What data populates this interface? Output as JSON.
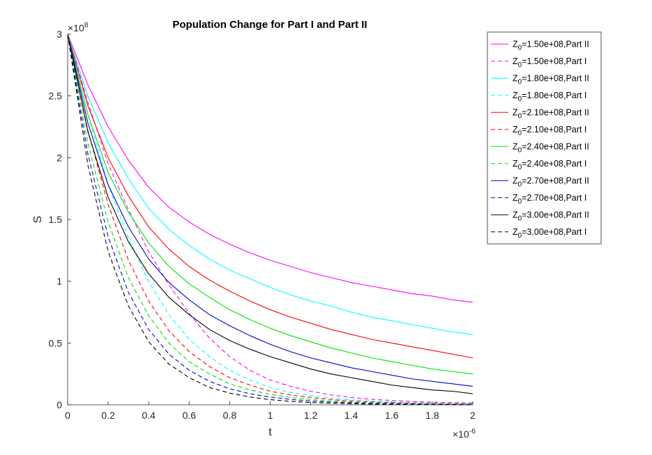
{
  "chart_data": {
    "type": "line",
    "title": "Population Change for Part I and Part II",
    "xlabel": "t",
    "ylabel": "S",
    "x_exponent_label": "×10",
    "x_exponent": "-6",
    "y_exponent_label": "×10",
    "y_exponent": "8",
    "xlim": [
      0,
      2
    ],
    "ylim": [
      0,
      3
    ],
    "x_ticks": [
      0,
      0.2,
      0.4,
      0.6,
      0.8,
      1,
      1.2,
      1.4,
      1.6,
      1.8,
      2
    ],
    "x_tick_labels": [
      "0",
      "0.2",
      "0.4",
      "0.6",
      "0.8",
      "1",
      "1.2",
      "1.4",
      "1.6",
      "1.8",
      "2"
    ],
    "y_ticks": [
      0,
      0.5,
      1,
      1.5,
      2,
      2.5,
      3
    ],
    "y_tick_labels": [
      "0",
      "0.5",
      "1",
      "1.5",
      "2",
      "2.5",
      "3"
    ],
    "grid": false,
    "legend_position": "outside-right",
    "x": [
      0,
      0.1,
      0.2,
      0.3,
      0.4,
      0.5,
      0.6,
      0.7,
      0.8,
      0.9,
      1.0,
      1.1,
      1.2,
      1.3,
      1.4,
      1.5,
      1.6,
      1.7,
      1.8,
      1.9,
      2.0
    ],
    "series": [
      {
        "name": "Z",
        "sub": "0",
        "suffix": "=1.50e+08,Part II",
        "color": "#ff00ff",
        "style": "solid",
        "values": [
          3.0,
          2.59,
          2.25,
          1.98,
          1.76,
          1.6,
          1.48,
          1.38,
          1.3,
          1.23,
          1.17,
          1.12,
          1.07,
          1.03,
          0.99,
          0.96,
          0.93,
          0.9,
          0.88,
          0.85,
          0.83
        ]
      },
      {
        "name": "Z",
        "sub": "0",
        "suffix": "=1.50e+08,Part I",
        "color": "#ff00ff",
        "style": "dashed",
        "values": [
          3.0,
          2.45,
          1.95,
          1.58,
          1.24,
          0.97,
          0.74,
          0.54,
          0.39,
          0.28,
          0.2,
          0.15,
          0.11,
          0.08,
          0.06,
          0.045,
          0.035,
          0.027,
          0.022,
          0.018,
          0.015
        ]
      },
      {
        "name": "Z",
        "sub": "0",
        "suffix": "=1.80e+08,Part II",
        "color": "#00ffff",
        "style": "solid",
        "values": [
          3.0,
          2.5,
          2.12,
          1.83,
          1.59,
          1.42,
          1.29,
          1.18,
          1.09,
          1.02,
          0.95,
          0.89,
          0.84,
          0.8,
          0.75,
          0.71,
          0.68,
          0.65,
          0.62,
          0.59,
          0.57
        ]
      },
      {
        "name": "Z",
        "sub": "0",
        "suffix": "=1.80e+08,Part I",
        "color": "#00ffff",
        "style": "dashed",
        "values": [
          3.0,
          2.35,
          1.78,
          1.35,
          1.0,
          0.73,
          0.53,
          0.39,
          0.28,
          0.2,
          0.14,
          0.1,
          0.075,
          0.055,
          0.04,
          0.03,
          0.023,
          0.018,
          0.014,
          0.011,
          0.009
        ]
      },
      {
        "name": "Z",
        "sub": "0",
        "suffix": "=2.10e+08,Part II",
        "color": "#ff0000",
        "style": "solid",
        "values": [
          3.0,
          2.42,
          2.0,
          1.69,
          1.44,
          1.26,
          1.12,
          1.01,
          0.92,
          0.84,
          0.77,
          0.71,
          0.66,
          0.61,
          0.57,
          0.53,
          0.5,
          0.47,
          0.44,
          0.41,
          0.38
        ]
      },
      {
        "name": "Z",
        "sub": "0",
        "suffix": "=2.10e+08,Part I",
        "color": "#ff0000",
        "style": "dashed",
        "values": [
          3.0,
          2.22,
          1.62,
          1.17,
          0.84,
          0.6,
          0.43,
          0.31,
          0.22,
          0.16,
          0.11,
          0.08,
          0.06,
          0.043,
          0.031,
          0.023,
          0.017,
          0.013,
          0.01,
          0.008,
          0.006
        ]
      },
      {
        "name": "Z",
        "sub": "0",
        "suffix": "=2.40e+08,Part II",
        "color": "#00e000",
        "style": "solid",
        "values": [
          3.0,
          2.35,
          1.88,
          1.56,
          1.31,
          1.12,
          0.98,
          0.87,
          0.77,
          0.69,
          0.62,
          0.56,
          0.51,
          0.46,
          0.42,
          0.38,
          0.35,
          0.32,
          0.29,
          0.27,
          0.25
        ]
      },
      {
        "name": "Z",
        "sub": "0",
        "suffix": "=2.40e+08,Part I",
        "color": "#00e000",
        "style": "dashed",
        "values": [
          3.0,
          2.12,
          1.48,
          1.03,
          0.72,
          0.5,
          0.35,
          0.25,
          0.17,
          0.12,
          0.085,
          0.06,
          0.043,
          0.031,
          0.022,
          0.016,
          0.012,
          0.009,
          0.007,
          0.005,
          0.004
        ]
      },
      {
        "name": "Z",
        "sub": "0",
        "suffix": "=2.70e+08,Part II",
        "color": "#0000cd",
        "style": "solid",
        "values": [
          3.0,
          2.28,
          1.78,
          1.44,
          1.18,
          0.99,
          0.85,
          0.73,
          0.64,
          0.56,
          0.49,
          0.43,
          0.38,
          0.34,
          0.3,
          0.27,
          0.24,
          0.21,
          0.19,
          0.17,
          0.15
        ]
      },
      {
        "name": "Z",
        "sub": "0",
        "suffix": "=2.70e+08,Part I",
        "color": "#0000cd",
        "style": "dashed",
        "values": [
          3.0,
          2.03,
          1.36,
          0.91,
          0.61,
          0.41,
          0.28,
          0.19,
          0.13,
          0.09,
          0.063,
          0.044,
          0.031,
          0.022,
          0.016,
          0.011,
          0.008,
          0.006,
          0.004,
          0.003,
          0.002
        ]
      },
      {
        "name": "Z",
        "sub": "0",
        "suffix": "=3.00e+08,Part II",
        "color": "#000000",
        "style": "solid",
        "values": [
          3.0,
          2.21,
          1.68,
          1.32,
          1.06,
          0.87,
          0.73,
          0.61,
          0.52,
          0.45,
          0.39,
          0.34,
          0.29,
          0.25,
          0.22,
          0.19,
          0.16,
          0.14,
          0.12,
          0.11,
          0.09
        ]
      },
      {
        "name": "Z",
        "sub": "0",
        "suffix": "=3.00e+08,Part I",
        "color": "#000000",
        "style": "dashed",
        "values": [
          3.0,
          1.94,
          1.24,
          0.8,
          0.51,
          0.33,
          0.22,
          0.14,
          0.095,
          0.063,
          0.042,
          0.028,
          0.019,
          0.013,
          0.009,
          0.006,
          0.004,
          0.003,
          0.002,
          0.001,
          0.001
        ]
      }
    ]
  }
}
